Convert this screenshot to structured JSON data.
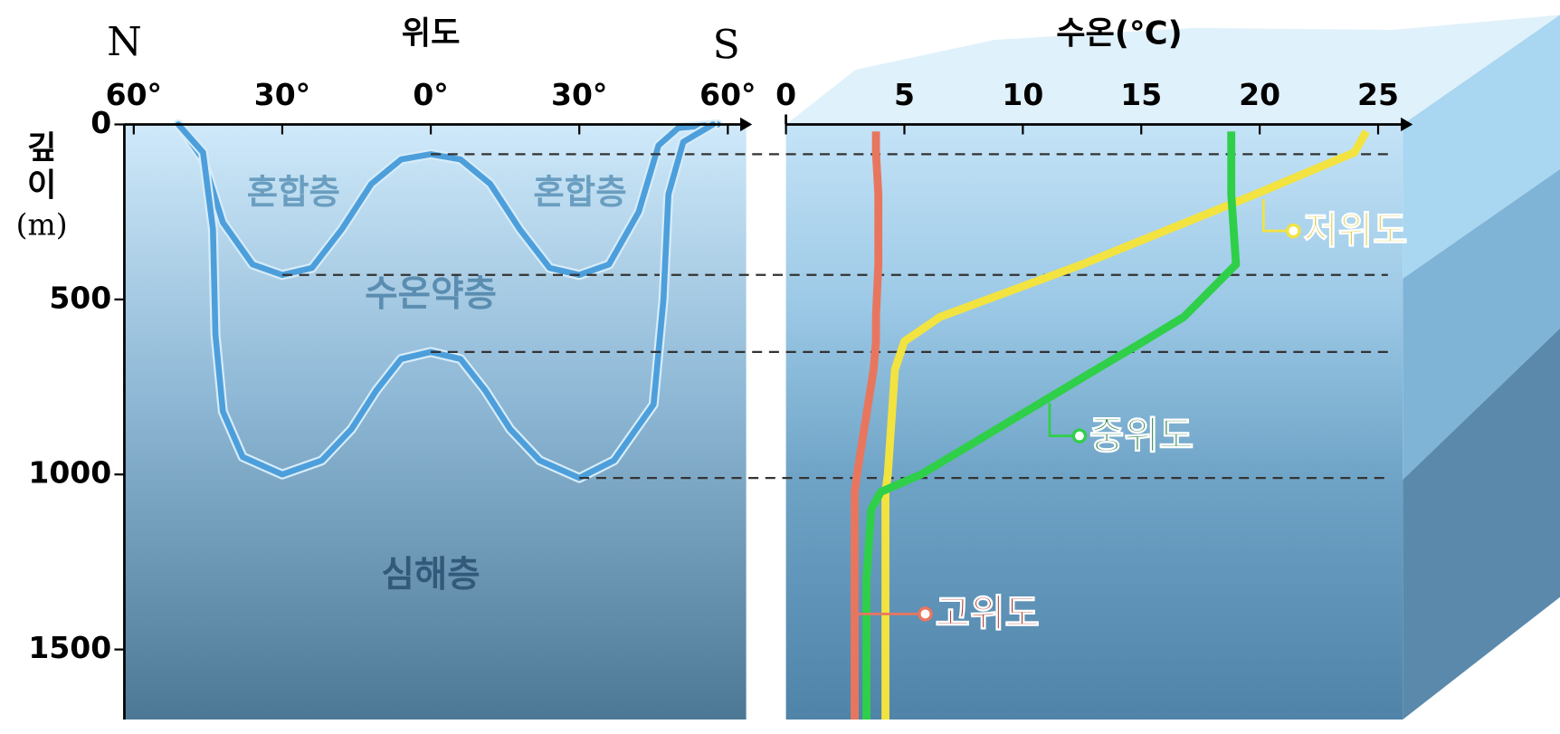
{
  "chart_data": [
    {
      "type": "section",
      "title": "위도",
      "left_label": "N",
      "right_label": "S",
      "ylabel_lines": [
        "깊",
        "이",
        "(m)"
      ],
      "xlim": [
        -62.5,
        62.5
      ],
      "xticks": [
        {
          "value": -60,
          "label": "60°"
        },
        {
          "value": -30,
          "label": "30°"
        },
        {
          "value": 0,
          "label": "0°"
        },
        {
          "value": 30,
          "label": "30°"
        },
        {
          "value": 60,
          "label": "60°"
        }
      ],
      "ylim": [
        0,
        1700
      ],
      "yticks": [
        0,
        500,
        1000,
        1500
      ],
      "annotations": [
        "혼합층",
        "혼합층",
        "수온약층",
        "심해층"
      ],
      "series": [
        {
          "color": "#4d9fdc",
          "x": [
            -51,
            -46,
            -42,
            -36,
            -30,
            -24,
            -18,
            -12,
            -6,
            0,
            6,
            12,
            18,
            24,
            30,
            36,
            42,
            46,
            50,
            58
          ],
          "values": [
            0,
            100,
            280,
            400,
            430,
            410,
            300,
            170,
            100,
            85,
            100,
            170,
            300,
            410,
            430,
            400,
            250,
            60,
            10,
            0
          ]
        },
        {
          "color": "#4d9fdc",
          "x": [
            -51,
            -46,
            -44,
            -43.5,
            -42,
            -38,
            -30,
            -22,
            -16,
            -11,
            -6,
            0,
            6,
            11,
            16,
            22,
            30,
            37,
            45,
            47,
            48,
            51,
            57
          ],
          "values": [
            0,
            80,
            300,
            600,
            820,
            950,
            1000,
            960,
            870,
            760,
            670,
            650,
            670,
            760,
            870,
            960,
            1010,
            960,
            800,
            500,
            200,
            50,
            0
          ]
        }
      ]
    },
    {
      "type": "line",
      "title": "수온(℃)",
      "xlim": [
        0,
        26
      ],
      "xticks": [
        0,
        5,
        10,
        15,
        20,
        25
      ],
      "ylim": [
        0,
        1700
      ],
      "y": [
        20,
        80,
        200,
        400,
        550,
        620,
        700,
        1000,
        1050,
        1100,
        1300,
        1700
      ],
      "series": [
        {
          "name": "저위도",
          "color": "#f2e340",
          "values": [
            24.5,
            24,
            19.8,
            12.5,
            6.5,
            5.0,
            4.6,
            4.3,
            4.2,
            4.2,
            4.2,
            4.2
          ]
        },
        {
          "name": "중위도",
          "color": "#2fcf4a",
          "values": [
            18.8,
            18.8,
            18.8,
            19.0,
            16.8,
            15.1,
            13.1,
            5.7,
            4.0,
            3.6,
            3.4,
            3.4
          ]
        },
        {
          "name": "고위도",
          "color": "#e8765f",
          "values": [
            3.8,
            3.8,
            3.9,
            3.9,
            3.8,
            3.8,
            3.7,
            3.0,
            2.9,
            2.9,
            2.9,
            2.9
          ]
        }
      ]
    }
  ]
}
